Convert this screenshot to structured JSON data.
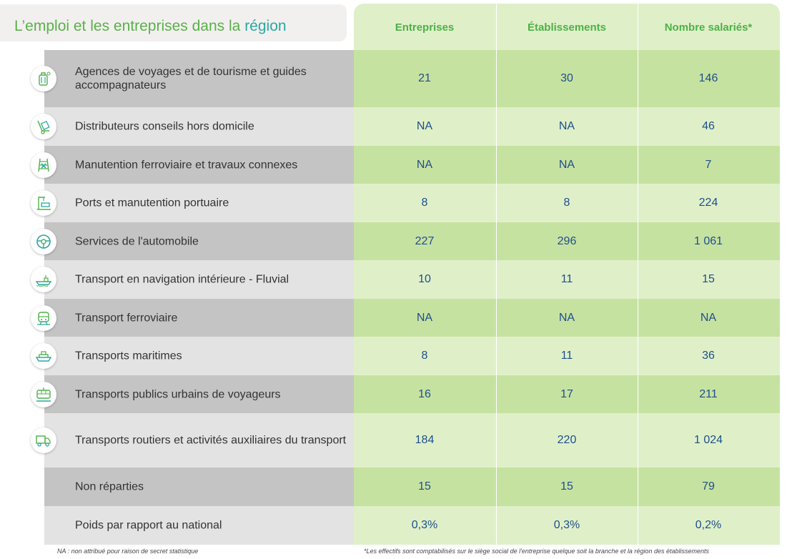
{
  "title": {
    "part1": "L’emploi et les entreprises dans la ",
    "part2": "région"
  },
  "columns": [
    "Entreprises",
    "Établissements",
    "Nombre salariés*"
  ],
  "rows": [
    {
      "label": "Agences de voyages et de tourisme et guides accompagnateurs",
      "icon": "luggage-icon",
      "values": [
        "21",
        "30",
        "146"
      ]
    },
    {
      "label": "Distributeurs conseils hors domicile",
      "icon": "hand-truck-icon",
      "values": [
        "NA",
        "NA",
        "46"
      ]
    },
    {
      "label": "Manutention ferroviaire et travaux connexes",
      "icon": "rail-tools-icon",
      "values": [
        "NA",
        "NA",
        "7"
      ]
    },
    {
      "label": "Ports et manutention portuaire",
      "icon": "port-crane-icon",
      "values": [
        "8",
        "8",
        "224"
      ]
    },
    {
      "label": "Services de l'automobile",
      "icon": "steering-wheel-icon",
      "values": [
        "227",
        "296",
        "1 061"
      ]
    },
    {
      "label": "Transport en navigation intérieure - Fluvial",
      "icon": "barge-icon",
      "values": [
        "10",
        "11",
        "15"
      ]
    },
    {
      "label": "Transport ferroviaire",
      "icon": "train-icon",
      "values": [
        "NA",
        "NA",
        "NA"
      ]
    },
    {
      "label": "Transports maritimes",
      "icon": "ship-icon",
      "values": [
        "8",
        "11",
        "36"
      ]
    },
    {
      "label": "Transports publics urbains de voyageurs",
      "icon": "tram-icon",
      "values": [
        "16",
        "17",
        "211"
      ]
    },
    {
      "label": "Transports routiers et activités auxiliaires du transport",
      "icon": "truck-icon",
      "values": [
        "184",
        "220",
        "1 024"
      ]
    },
    {
      "label": "Non réparties",
      "icon": "",
      "values": [
        "15",
        "15",
        "79"
      ]
    },
    {
      "label": "Poids par rapport au national",
      "icon": "",
      "values": [
        "0,3%",
        "0,3%",
        "0,2%"
      ]
    }
  ],
  "footnotes": {
    "left": "NA : non attribué pour raison de secret statistique",
    "right": "*Les effectifs sont comptabilisés sur le siège social de l'entreprise quelque soit la branche et la région des établissements"
  },
  "colors": {
    "title_green": "#5ab04a",
    "title_teal": "#2aa8a0",
    "header_green": "#4eb147",
    "value_blue": "#1f4e8c",
    "row_dark_gray": "#c4c4c4",
    "row_light_gray": "#e4e3e3",
    "row_dark_green": "#c6e2a1",
    "row_light_green": "#dff0c9"
  }
}
